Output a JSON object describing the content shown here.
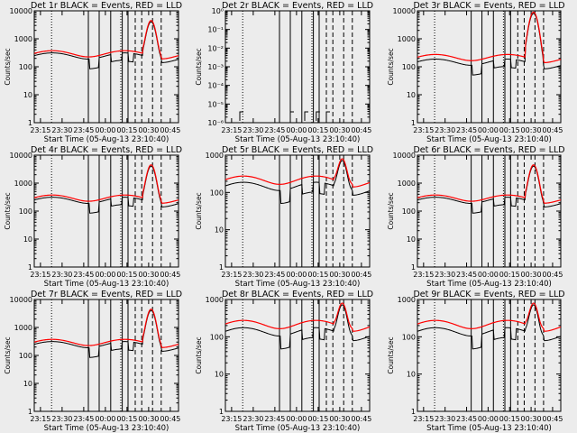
{
  "page": {
    "background": "#ececec"
  },
  "colors": {
    "events": "#000000",
    "lld": "#ff0000",
    "axis": "#000000"
  },
  "chart_data": [
    {
      "type": "line",
      "title": "Det 1r BLACK = Events, RED = LLD",
      "ylabel": "Counts/sec",
      "xlabel": "Start Time (05-Aug-13 23:10:40)",
      "xticks": [
        "23:15",
        "23:30",
        "23:45",
        "00:00",
        "00:15",
        "00:30",
        "00:45"
      ],
      "yscale": "log",
      "ylim": [
        1,
        10000
      ],
      "yticks": [
        "1",
        "10",
        "100",
        "1000",
        "10000"
      ],
      "series": [
        {
          "name": "Events",
          "color": "black",
          "base": 250
        },
        {
          "name": "LLD",
          "color": "red",
          "base": 300,
          "peak": 4500
        }
      ]
    },
    {
      "type": "line",
      "title": "Det 2r BLACK = Events, RED = LLD",
      "ylabel": "Counts/sec",
      "xlabel": "Start Time (05-Aug-13 23:10:40)",
      "xticks": [
        "23:15",
        "23:30",
        "23:45",
        "00:00",
        "00:15",
        "00:30",
        "00:45"
      ],
      "yscale": "log",
      "ylim": [
        1e-06,
        1
      ],
      "yticks": [
        "10⁻⁶",
        "10⁻⁵",
        "10⁻⁴",
        "10⁻³",
        "10⁻²",
        "10⁻¹",
        "10⁰"
      ],
      "series": [
        {
          "name": "Events",
          "color": "black",
          "base": 0
        },
        {
          "name": "LLD",
          "color": "red",
          "base": 0
        }
      ]
    },
    {
      "type": "line",
      "title": "Det 3r BLACK = Events, RED = LLD",
      "ylabel": "Counts/sec",
      "xlabel": "Start Time (05-Aug-13 23:10:40)",
      "xticks": [
        "23:15",
        "23:30",
        "23:45",
        "00:00",
        "00:15",
        "00:30",
        "00:45"
      ],
      "yscale": "log",
      "ylim": [
        1,
        10000
      ],
      "yticks": [
        "1",
        "10",
        "100",
        "1000",
        "10000"
      ],
      "series": [
        {
          "name": "Events",
          "color": "black",
          "base": 150
        },
        {
          "name": "LLD",
          "color": "red",
          "base": 220,
          "peak": 9000
        }
      ]
    },
    {
      "type": "line",
      "title": "Det 4r BLACK = Events, RED = LLD",
      "ylabel": "Counts/sec",
      "xlabel": "Start Time (05-Aug-13 23:10:40)",
      "xticks": [
        "23:15",
        "23:30",
        "23:45",
        "00:00",
        "00:15",
        "00:30",
        "00:45"
      ],
      "yscale": "log",
      "ylim": [
        1,
        10000
      ],
      "yticks": [
        "1",
        "10",
        "100",
        "1000",
        "10000"
      ],
      "series": [
        {
          "name": "Events",
          "color": "black",
          "base": 250
        },
        {
          "name": "LLD",
          "color": "red",
          "base": 300,
          "peak": 4500
        }
      ]
    },
    {
      "type": "line",
      "title": "Det 5r BLACK = Events, RED = LLD",
      "ylabel": "Counts/sec",
      "xlabel": "Start Time (05-Aug-13 23:10:40)",
      "xticks": [
        "23:15",
        "23:30",
        "23:45",
        "00:00",
        "00:15",
        "00:30",
        "00:45"
      ],
      "yscale": "log",
      "ylim": [
        1,
        1000
      ],
      "yticks": [
        "1",
        "10",
        "100",
        "1000"
      ],
      "series": [
        {
          "name": "Events",
          "color": "black",
          "base": 150
        },
        {
          "name": "LLD",
          "color": "red",
          "base": 220,
          "peak": 800
        }
      ]
    },
    {
      "type": "line",
      "title": "Det 6r BLACK = Events, RED = LLD",
      "ylabel": "Counts/sec",
      "xlabel": "Start Time (05-Aug-13 23:10:40)",
      "xticks": [
        "23:15",
        "23:30",
        "23:45",
        "00:00",
        "00:15",
        "00:30",
        "00:45"
      ],
      "yscale": "log",
      "ylim": [
        1,
        10000
      ],
      "yticks": [
        "1",
        "10",
        "100",
        "1000",
        "10000"
      ],
      "series": [
        {
          "name": "Events",
          "color": "black",
          "base": 250
        },
        {
          "name": "LLD",
          "color": "red",
          "base": 300,
          "peak": 4500
        }
      ]
    },
    {
      "type": "line",
      "title": "Det 7r BLACK = Events, RED = LLD",
      "ylabel": "Counts/sec",
      "xlabel": "Start Time (05-Aug-13 23:10:40)",
      "xticks": [
        "23:15",
        "23:30",
        "23:45",
        "00:00",
        "00:15",
        "00:30",
        "00:45"
      ],
      "yscale": "log",
      "ylim": [
        1,
        10000
      ],
      "yticks": [
        "1",
        "10",
        "100",
        "1000",
        "10000"
      ],
      "series": [
        {
          "name": "Events",
          "color": "black",
          "base": 250
        },
        {
          "name": "LLD",
          "color": "red",
          "base": 300,
          "peak": 4500
        }
      ]
    },
    {
      "type": "line",
      "title": "Det 8r BLACK = Events, RED = LLD",
      "ylabel": "Counts/sec",
      "xlabel": "Start Time (05-Aug-13 23:10:40)",
      "xticks": [
        "23:15",
        "23:30",
        "23:45",
        "00:00",
        "00:15",
        "00:30",
        "00:45"
      ],
      "yscale": "log",
      "ylim": [
        1,
        1000
      ],
      "yticks": [
        "1",
        "10",
        "100",
        "1000"
      ],
      "series": [
        {
          "name": "Events",
          "color": "black",
          "base": 140
        },
        {
          "name": "LLD",
          "color": "red",
          "base": 220,
          "peak": 800
        }
      ]
    },
    {
      "type": "line",
      "title": "Det 9r BLACK = Events, RED = LLD",
      "ylabel": "Counts/sec",
      "xlabel": "Start Time (05-Aug-13 23:10:40)",
      "xticks": [
        "23:15",
        "23:30",
        "23:45",
        "00:00",
        "00:15",
        "00:30",
        "00:45"
      ],
      "yscale": "log",
      "ylim": [
        1,
        1000
      ],
      "yticks": [
        "1",
        "10",
        "100",
        "1000"
      ],
      "series": [
        {
          "name": "Events",
          "color": "black",
          "base": 140
        },
        {
          "name": "LLD",
          "color": "red",
          "base": 220,
          "peak": 800
        }
      ]
    }
  ]
}
